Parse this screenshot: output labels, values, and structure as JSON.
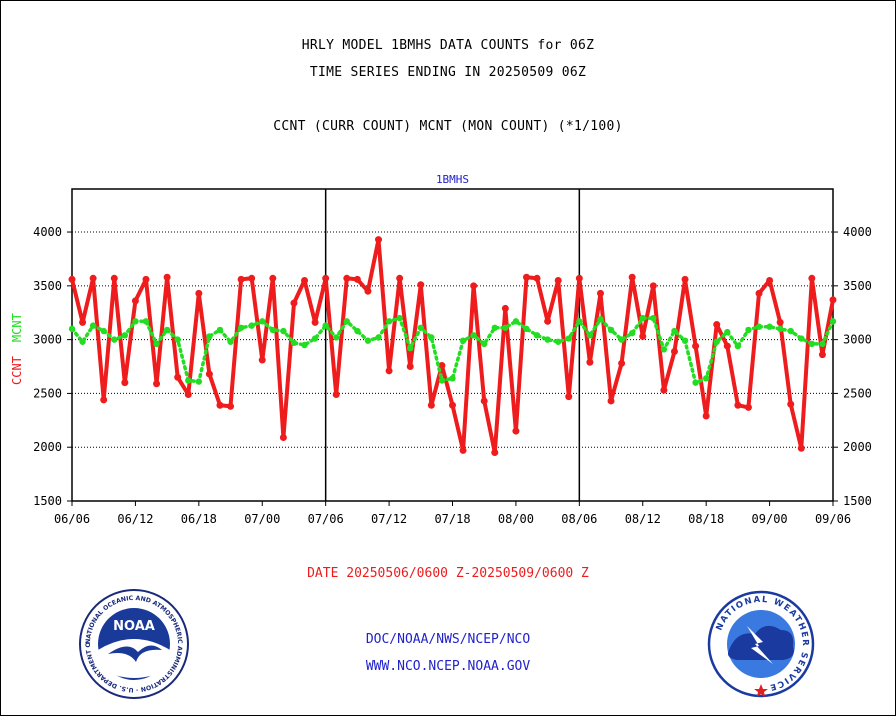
{
  "header": {
    "line1": "HRLY MODEL 1BMHS DATA COUNTS for 06Z",
    "line2": "TIME SERIES ENDING IN 20250509 06Z",
    "line3": "CCNT (CURR COUNT) MCNT (MON COUNT) (*1/100)"
  },
  "footer": {
    "date_range": "DATE 20250506/0600 Z-20250509/0600 Z",
    "org": "DOC/NOAA/NWS/NCEP/NCO",
    "url": "WWW.NCO.NCEP.NOAA.GOV"
  },
  "logos": {
    "noaa_text": "NOAA",
    "noaa_ring": "NATIONAL OCEANIC AND ATMOSPHERIC ADMINISTRATION · U.S. DEPARTMENT OF COMMERCE ·",
    "nws_ring": "NATIONAL WEATHER SERVICE"
  },
  "colors": {
    "ccnt": "#ee1c1c",
    "mcnt": "#22dd22",
    "blue": "#2222cc",
    "red_text": "#ee1c1c"
  },
  "chart_data": {
    "type": "line",
    "title": "1BMHS",
    "ylabel_left": "CCNT",
    "ylabel_left2": "MCNT",
    "ylim": [
      1500,
      4400
    ],
    "yticks": [
      1500,
      2000,
      2500,
      3000,
      3500,
      4000
    ],
    "xticks": [
      "06/06",
      "06/12",
      "06/18",
      "07/00",
      "07/06",
      "07/12",
      "07/18",
      "08/00",
      "08/06",
      "08/12",
      "08/18",
      "09/00",
      "09/06"
    ],
    "grid": true,
    "series": [
      {
        "name": "CCNT",
        "values": [
          3560,
          3160,
          3570,
          2440,
          3570,
          2600,
          3360,
          3560,
          2590,
          3580,
          2650,
          2490,
          3430,
          2680,
          2390,
          2380,
          3560,
          3570,
          2810,
          3570,
          2090,
          3340,
          3550,
          3160,
          3570,
          2490,
          3570,
          3560,
          3450,
          3930,
          2710,
          3570,
          2750,
          3510,
          2390,
          2760,
          2390,
          1970,
          3500,
          2430,
          1950,
          3290,
          2150,
          3580,
          3570,
          3170,
          3550,
          2470,
          3570,
          2790,
          3430,
          2430,
          2780,
          3580,
          3030,
          3500,
          2530,
          2890,
          3560,
          2940,
          2290,
          3140,
          2940,
          2390,
          2370,
          3430,
          3550,
          3160,
          2400,
          1990,
          3570,
          2860,
          3370
        ]
      },
      {
        "name": "MCNT",
        "values": [
          3100,
          2980,
          3130,
          3080,
          3000,
          3040,
          3170,
          3170,
          2960,
          3090,
          3000,
          2620,
          2610,
          3030,
          3090,
          2980,
          3110,
          3130,
          3170,
          3090,
          3080,
          2970,
          2950,
          3010,
          3130,
          3020,
          3170,
          3080,
          2990,
          3020,
          3170,
          3200,
          2920,
          3110,
          3020,
          2620,
          2640,
          2990,
          3040,
          2960,
          3110,
          3110,
          3170,
          3100,
          3040,
          3000,
          2980,
          3010,
          3170,
          3040,
          3190,
          3090,
          3000,
          3060,
          3200,
          3200,
          2910,
          3080,
          2990,
          2600,
          2640,
          2980,
          3070,
          2940,
          3090,
          3120,
          3120,
          3100,
          3080,
          3010,
          2960,
          2960,
          3170
        ]
      }
    ]
  }
}
